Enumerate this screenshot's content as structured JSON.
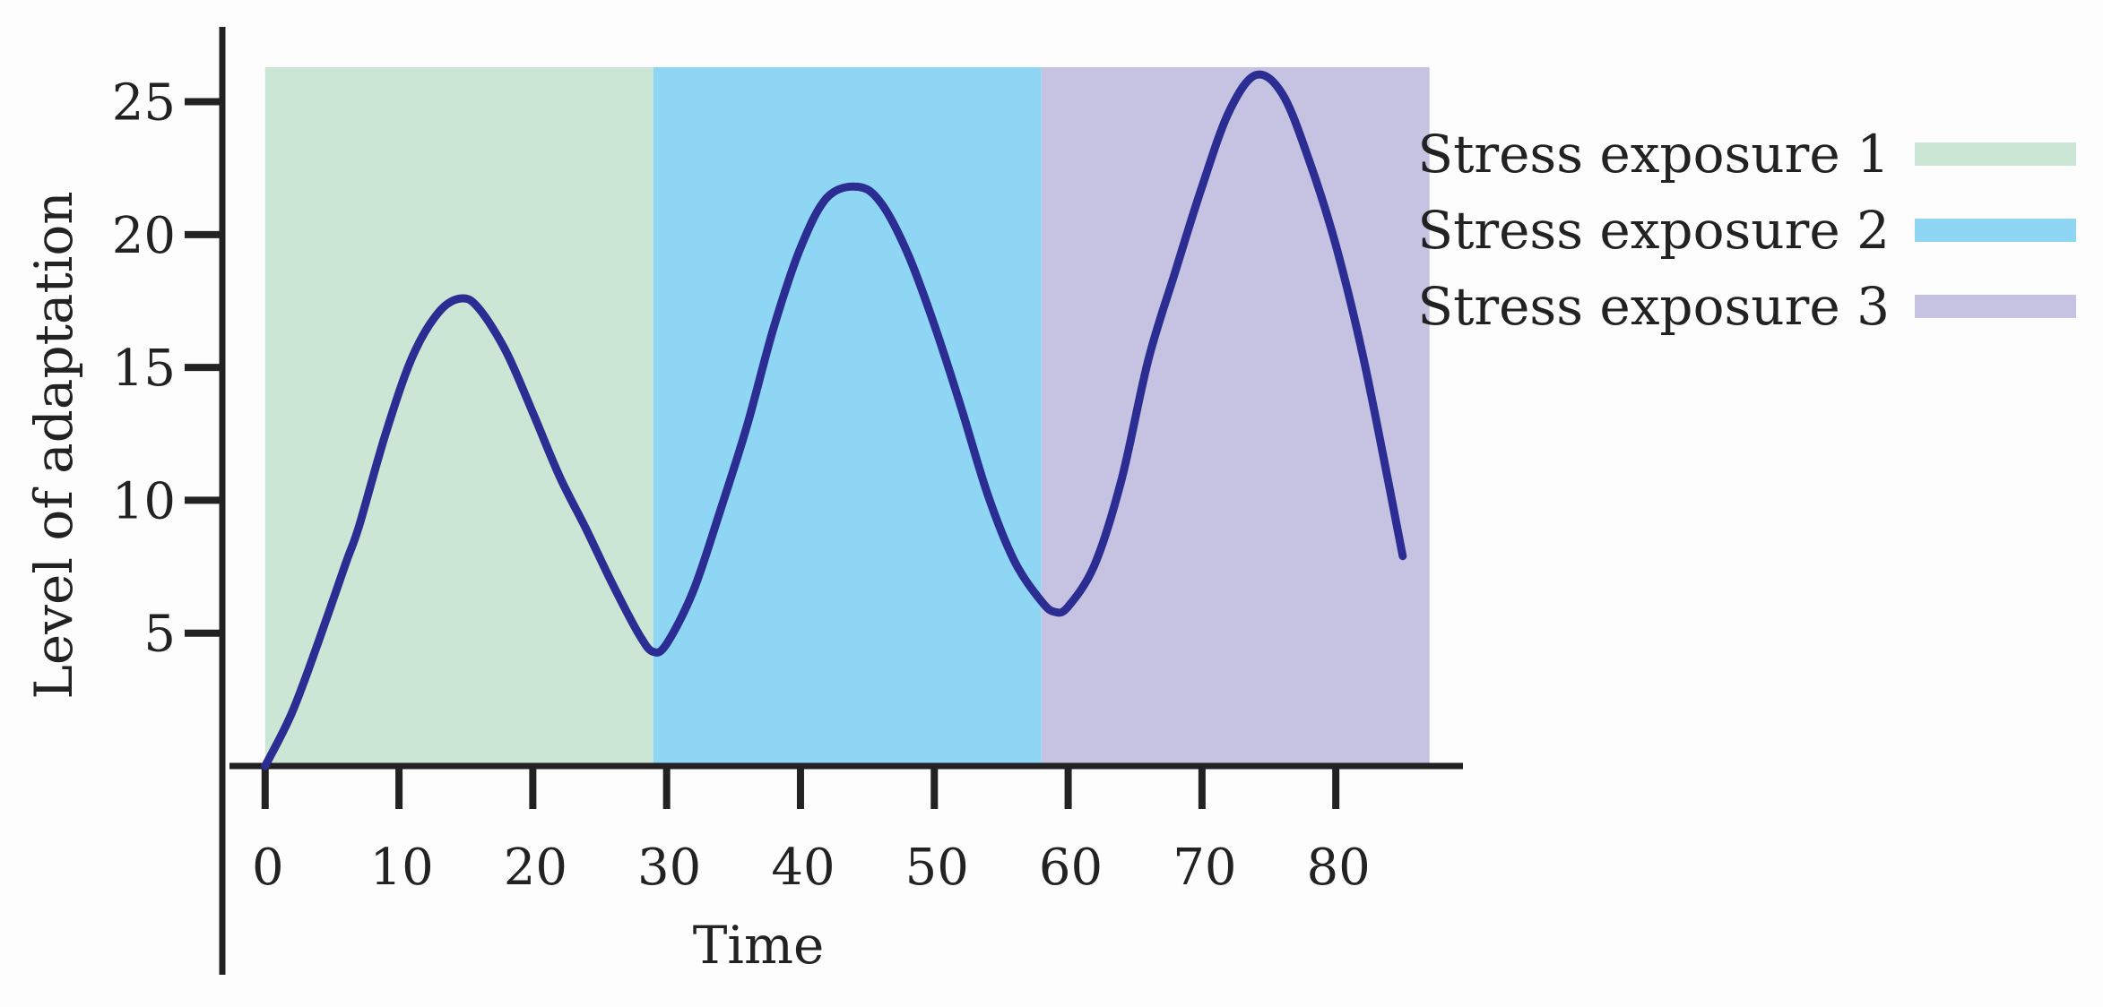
{
  "chart_data": {
    "type": "line",
    "title": "",
    "xlabel": "Time",
    "ylabel": "Level of adaptation",
    "xlim": [
      -3.2,
      89.5
    ],
    "ylim": [
      0,
      26.3
    ],
    "x_ticks": [
      0,
      10,
      20,
      30,
      40,
      50,
      60,
      70,
      80
    ],
    "y_ticks": [
      5,
      10,
      15,
      20,
      25
    ],
    "grid": false,
    "legend_position": "top-right",
    "regions": [
      {
        "name": "Stress exposure 1",
        "x_start": 0,
        "x_end": 29,
        "color": "#cce6d6"
      },
      {
        "name": "Stress exposure 2",
        "x_start": 29,
        "x_end": 58,
        "color": "#8fd6f4"
      },
      {
        "name": "Stress exposure 3",
        "x_start": 58,
        "x_end": 87,
        "color": "#c6c3e2"
      }
    ],
    "series": [
      {
        "color": "#2b2d92",
        "x": [
          0,
          2,
          4,
          6,
          7,
          9,
          11,
          13,
          14.7,
          16,
          18,
          20,
          22,
          24,
          26,
          28,
          29,
          30,
          32,
          34,
          36,
          38,
          40,
          42,
          44.3,
          46,
          48,
          50,
          52,
          54,
          56,
          58,
          59,
          60,
          62,
          64,
          66,
          68,
          70,
          72,
          74,
          76,
          78,
          80,
          82,
          84,
          85
        ],
        "y": [
          0,
          2,
          4.7,
          7.6,
          9,
          12.5,
          15.4,
          17.1,
          17.6,
          17.2,
          15.6,
          13.3,
          10.9,
          8.9,
          6.8,
          4.9,
          4.3,
          4.6,
          6.6,
          9.6,
          12.8,
          16.5,
          19.5,
          21.4,
          21.8,
          21.2,
          19.3,
          16.6,
          13.5,
          10.2,
          7.7,
          6.2,
          5.8,
          6.0,
          7.6,
          10.8,
          15.3,
          18.6,
          21.8,
          24.6,
          26.0,
          25.3,
          22.8,
          19.6,
          15.5,
          10.5,
          7.9
        ]
      }
    ]
  }
}
